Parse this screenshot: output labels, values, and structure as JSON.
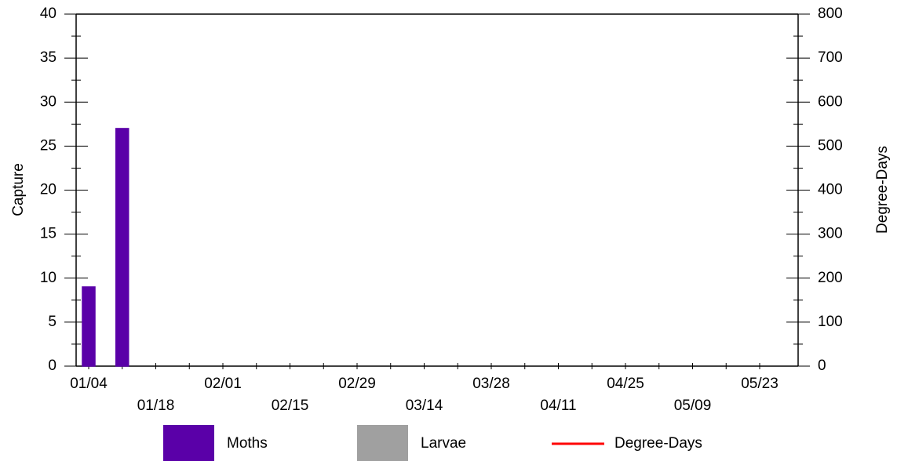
{
  "chart_data": {
    "type": "bar",
    "categories": [
      "01/04",
      null,
      "01/18",
      null,
      "02/01",
      null,
      "02/15",
      null,
      "02/29",
      null,
      "03/14",
      null,
      "03/28",
      null,
      "04/11",
      null,
      "04/25",
      null,
      "05/09",
      null,
      "05/23"
    ],
    "y_label": "Capture",
    "y2_label": "Degree-Days",
    "ylim": [
      0,
      40
    ],
    "yticks": [
      0,
      5,
      10,
      15,
      20,
      25,
      30,
      35,
      40
    ],
    "y2lim": [
      0,
      800
    ],
    "y2ticks": [
      0,
      100,
      200,
      300,
      400,
      500,
      600,
      700,
      800
    ],
    "series": [
      {
        "name": "Moths",
        "color": "#5a00a8",
        "values": [
          9,
          27,
          0,
          0,
          0,
          0,
          0,
          0,
          0,
          0,
          0,
          0,
          0,
          0,
          0,
          0,
          0,
          0,
          0,
          0,
          0
        ]
      },
      {
        "name": "Larvae",
        "color": "#a0a0a0",
        "values": [
          null,
          null,
          null,
          null,
          null,
          null,
          null,
          null,
          null,
          null,
          null,
          null,
          null,
          null,
          null,
          null,
          null,
          null,
          null,
          null,
          null
        ]
      },
      {
        "name": "Degree-Days",
        "type": "line",
        "axis": "y2",
        "color": "#ff0000",
        "values": [
          null,
          null,
          null,
          null,
          null,
          null,
          null,
          null,
          null,
          null,
          null,
          null,
          null,
          null,
          null,
          null,
          null,
          null,
          null,
          null,
          null
        ]
      }
    ]
  }
}
